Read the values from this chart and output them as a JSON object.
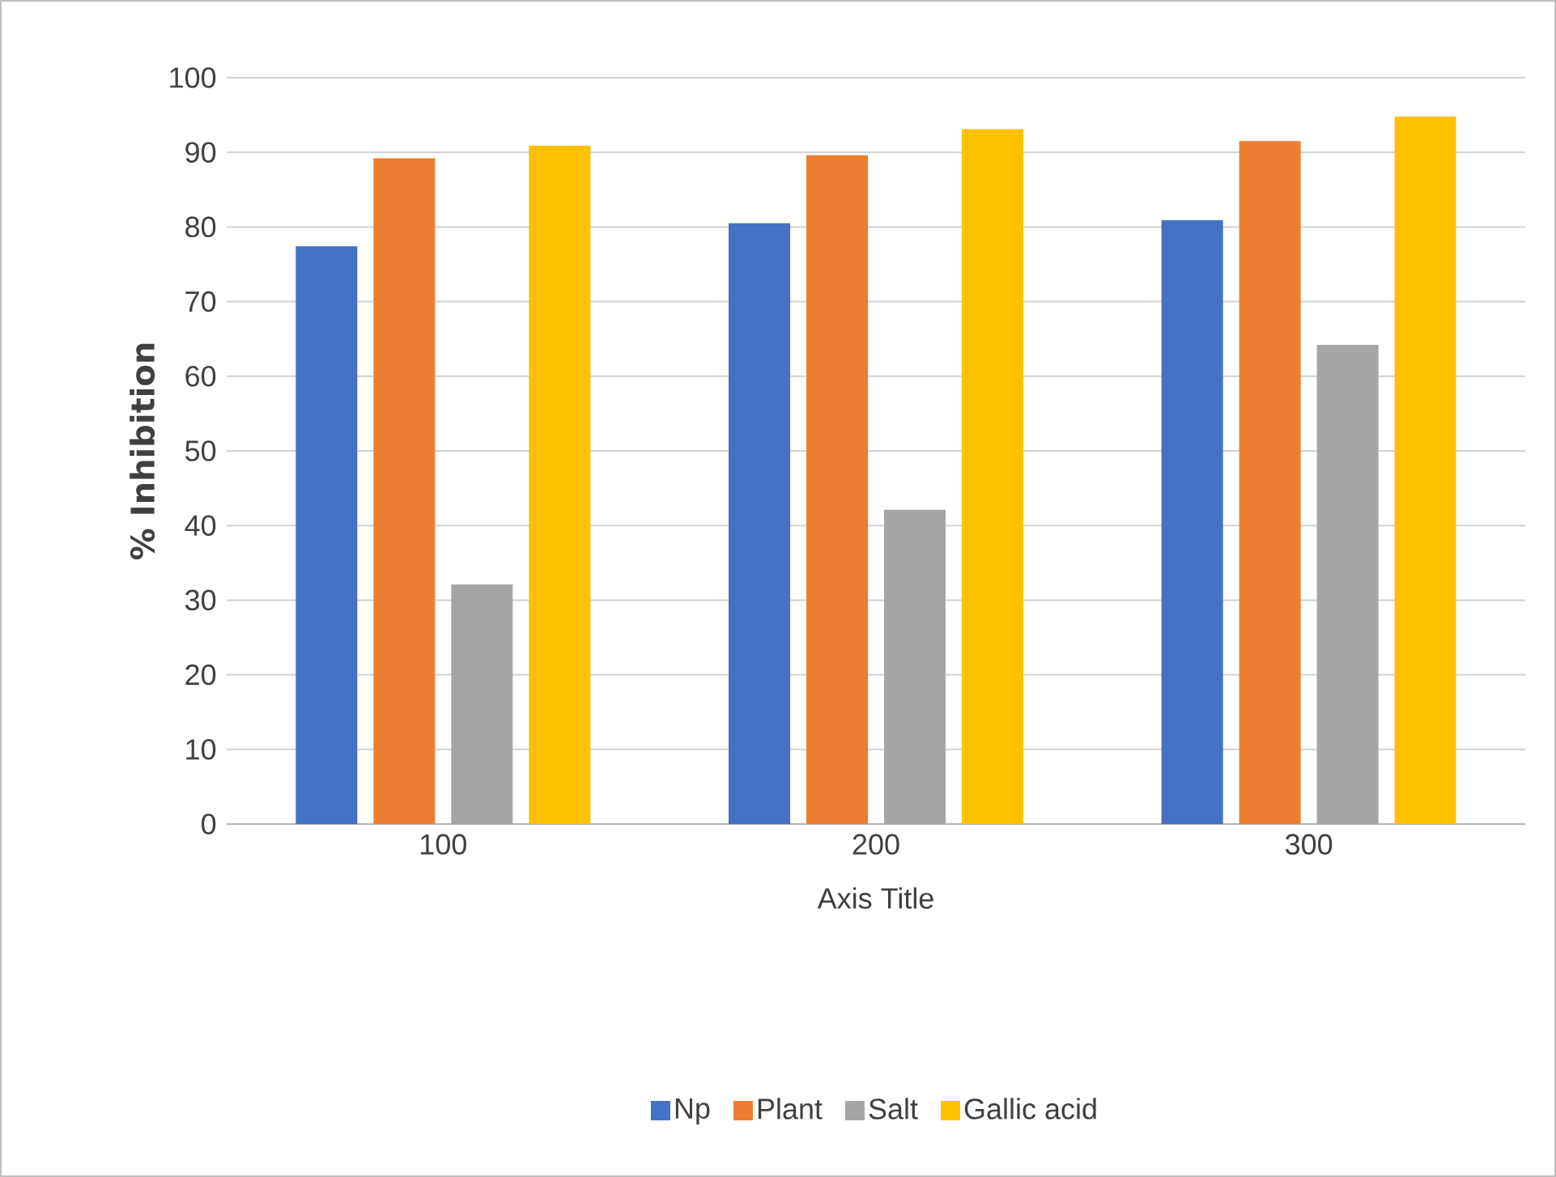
{
  "chart_data": {
    "type": "bar",
    "xlabel": "Axis Title",
    "ylabel": "% Inhibition",
    "categories": [
      "100",
      "200",
      "300"
    ],
    "series": [
      {
        "name": "Np",
        "color": "#4472c4",
        "values": [
          77.4,
          80.5,
          80.9
        ]
      },
      {
        "name": "Plant",
        "color": "#ed7d31",
        "values": [
          89.2,
          89.6,
          91.5
        ]
      },
      {
        "name": "Salt",
        "color": "#a5a5a5",
        "values": [
          32.1,
          42.1,
          64.2
        ]
      },
      {
        "name": "Gallic acid",
        "color": "#ffc000",
        "values": [
          90.9,
          93.1,
          94.8
        ]
      }
    ],
    "ylim": [
      0,
      100
    ],
    "yticks": [
      0,
      10,
      20,
      30,
      40,
      50,
      60,
      70,
      80,
      90,
      100
    ],
    "grid": "y",
    "legend": "bottom"
  }
}
